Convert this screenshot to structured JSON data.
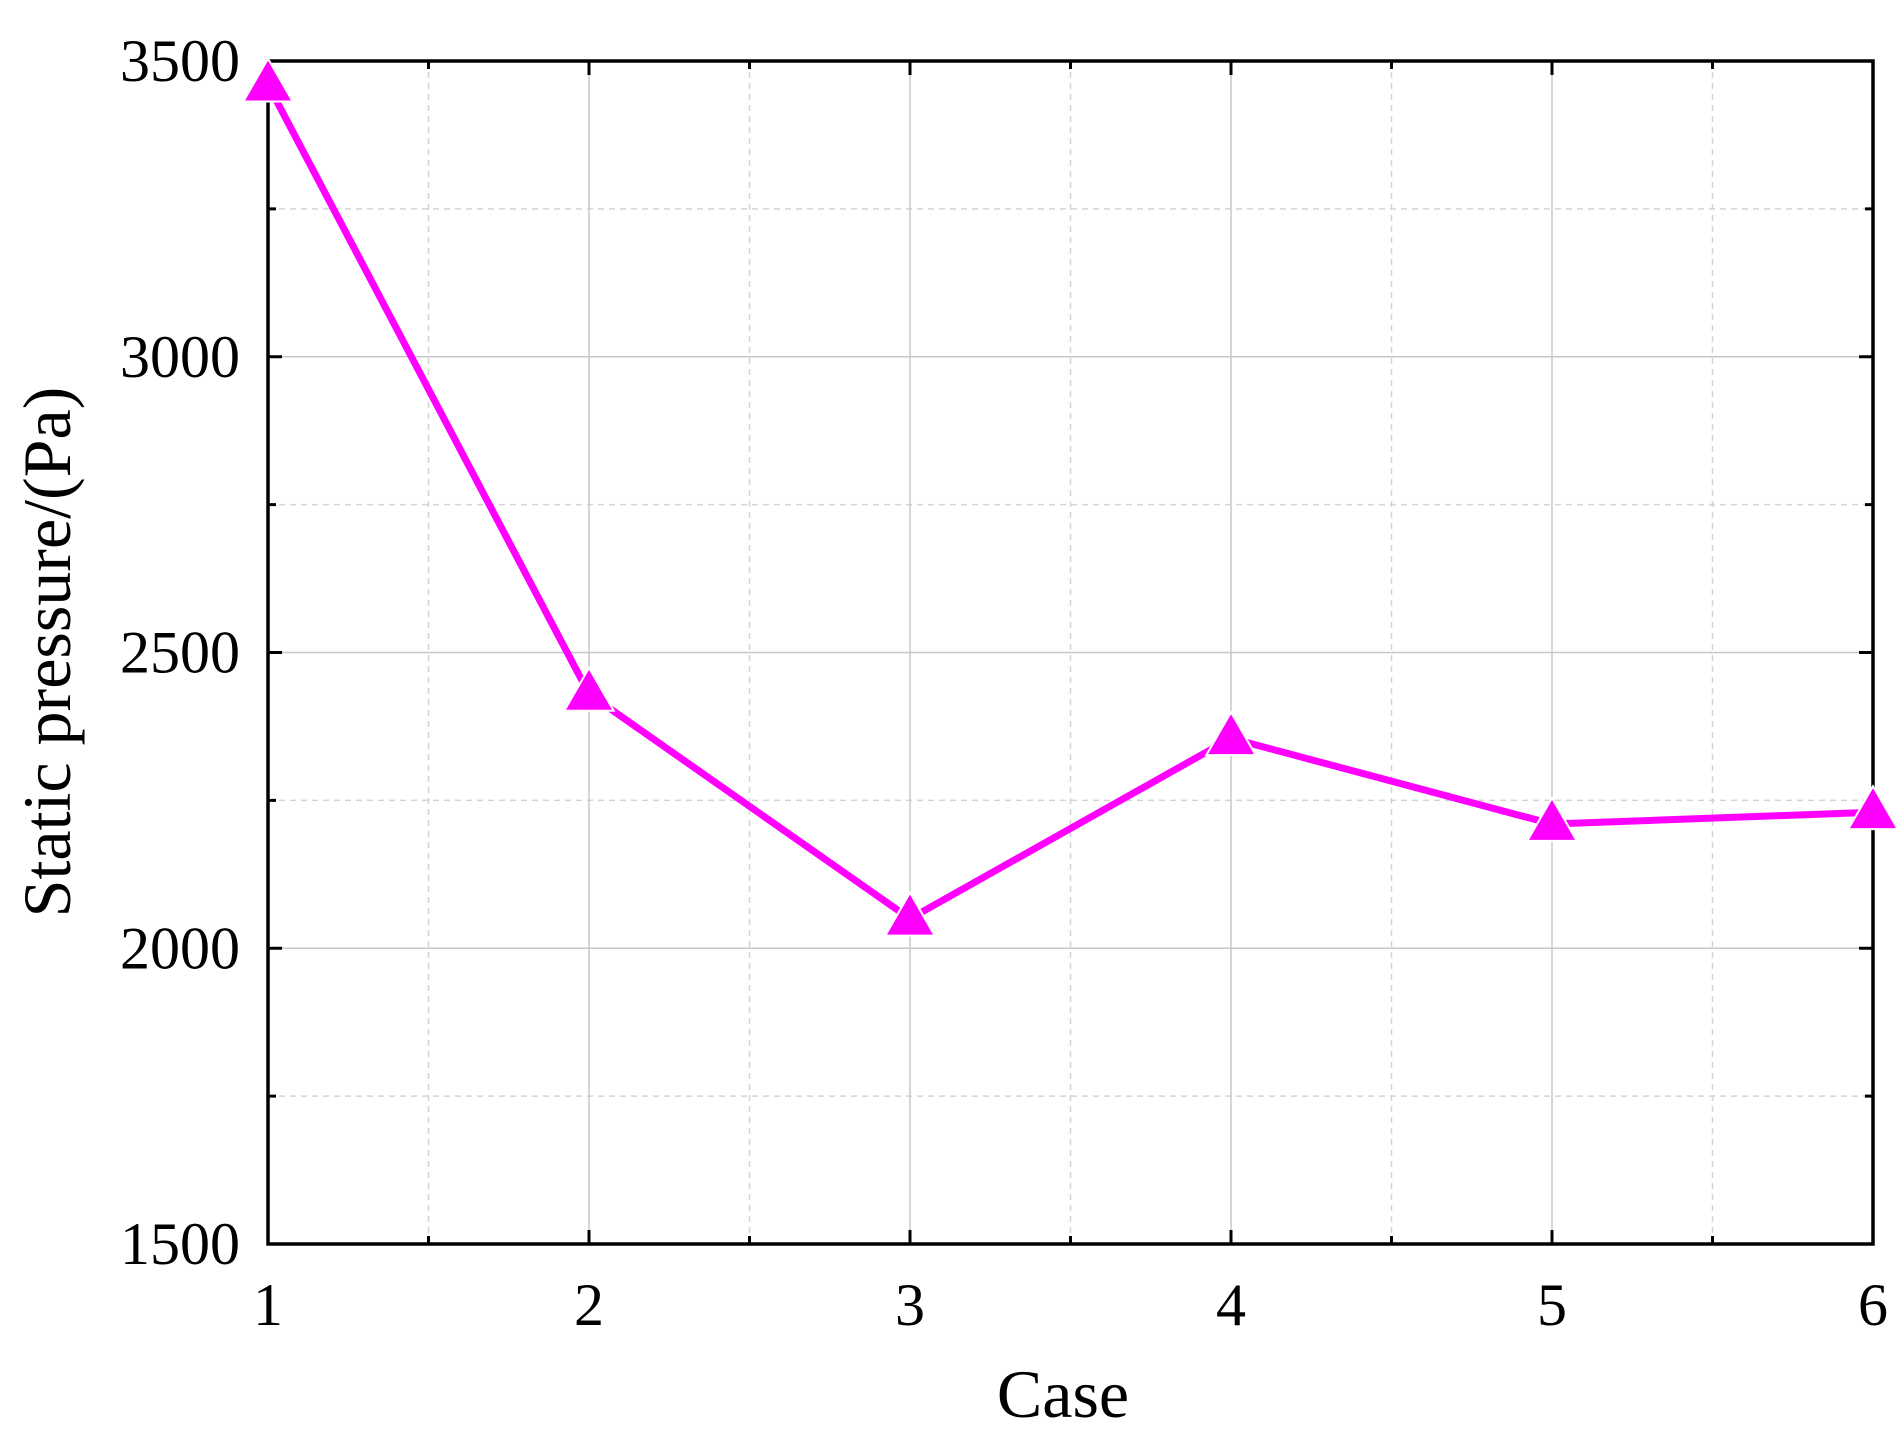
{
  "chart_data": {
    "type": "line",
    "x_label": "Case",
    "y_label": "Static pressure/(Pa)",
    "x": [
      1,
      2,
      3,
      4,
      5,
      6
    ],
    "series": [
      {
        "color": "#ff00ff",
        "marker": "triangle",
        "values": [
          3460,
          2430,
          2050,
          2355,
          2210,
          2230
        ]
      }
    ],
    "xlim": [
      1,
      6
    ],
    "xticks": [
      1,
      2,
      3,
      4,
      5,
      6
    ],
    "ylim": [
      1500,
      3500
    ],
    "yticks": [
      1500,
      2000,
      2500,
      3000,
      3500
    ],
    "minor_xticks": [
      1.5,
      2.5,
      3.5,
      4.5,
      5.5
    ],
    "minor_yticks": [
      1750,
      2250,
      2750,
      3250
    ],
    "grid": true
  }
}
